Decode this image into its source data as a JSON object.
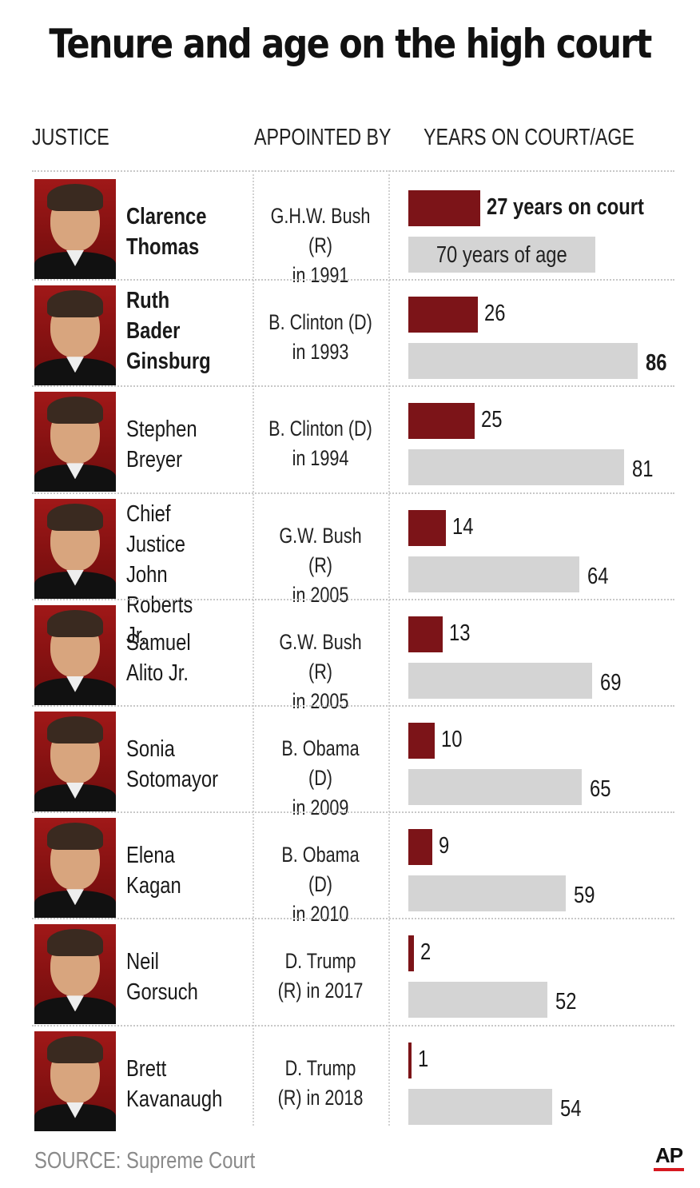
{
  "title": "Tenure and age on the high court",
  "headers": {
    "justice": "JUSTICE",
    "appointed_by": "APPOINTED BY",
    "years_age": "YEARS ON COURT/AGE"
  },
  "source": "SOURCE: Supreme Court",
  "logo": "AP",
  "colors": {
    "years_bar": "#7c1418",
    "age_bar": "#d4d4d4"
  },
  "chart_data": {
    "type": "bar",
    "title": "Tenure and age on the high court",
    "categories": [
      "Clarence Thomas",
      "Ruth Bader Ginsburg",
      "Stephen Breyer",
      "Chief Justice John Roberts Jr.",
      "Samuel Alito Jr.",
      "Sonia Sotomayor",
      "Elena Kagan",
      "Neil Gorsuch",
      "Brett Kavanaugh"
    ],
    "series": [
      {
        "name": "years on court",
        "values": [
          27,
          26,
          25,
          14,
          13,
          10,
          9,
          2,
          1
        ]
      },
      {
        "name": "years of age",
        "values": [
          70,
          86,
          81,
          64,
          69,
          65,
          59,
          52,
          54
        ]
      }
    ],
    "orientation": "horizontal",
    "grid": false
  },
  "justices": [
    {
      "name": "Clarence\nThomas",
      "appointed": "G.H.W. Bush (R)\nin 1991",
      "years_label": "27 years on court",
      "age_label": "70 years of age"
    },
    {
      "name": "Ruth\nBader\nGinsburg",
      "appointed": "B. Clinton (D)\nin 1993",
      "years_label": "26",
      "age_label": "86"
    },
    {
      "name": "Stephen\n Breyer",
      "appointed": "B. Clinton (D)\nin 1994",
      "years_label": "25",
      "age_label": "81"
    },
    {
      "name": "Chief Justice\nJohn Roberts\nJr.",
      "appointed": "G.W. Bush (R)\nin 2005",
      "years_label": "14",
      "age_label": "64"
    },
    {
      "name": "Samuel\nAlito Jr.",
      "appointed": "G.W. Bush (R)\nin 2005",
      "years_label": "13",
      "age_label": "69"
    },
    {
      "name": "Sonia\nSotomayor",
      "appointed": "B. Obama (D)\nin 2009",
      "years_label": "10",
      "age_label": "65"
    },
    {
      "name": "Elena\nKagan",
      "appointed": "B. Obama (D)\nin 2010",
      "years_label": "9",
      "age_label": "59"
    },
    {
      "name": "Neil\nGorsuch",
      "appointed": "D. Trump\n(R) in 2017",
      "years_label": "2",
      "age_label": "52"
    },
    {
      "name": "Brett\nKavanaugh",
      "appointed": "D. Trump\n(R) in 2018",
      "years_label": "1",
      "age_label": "54"
    }
  ]
}
